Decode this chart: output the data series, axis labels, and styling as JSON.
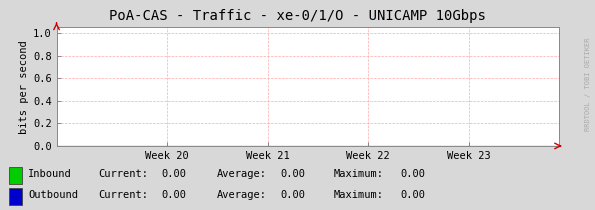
{
  "title": "PoA-CAS - Traffic - xe-0/1/O - UNICAMP 10Gbps",
  "ylabel": "bits per second",
  "background_color": "#d8d8d8",
  "plot_background_color": "#ffffff",
  "grid_color": "#ffaaaa",
  "axis_line_color": "#cc0000",
  "border_color": "#888888",
  "ylim": [
    0.0,
    1.05
  ],
  "yticks": [
    0.0,
    0.2,
    0.4,
    0.6,
    0.8,
    1.0
  ],
  "xtick_labels": [
    "Week 20",
    "Week 21",
    "Week 22",
    "Week 23"
  ],
  "xtick_positions": [
    0.22,
    0.42,
    0.62,
    0.82
  ],
  "watermark": "RRDTOOL / TOBI OETIKER",
  "legend": [
    {
      "label": "Inbound",
      "color": "#00cc00",
      "current": "0.00",
      "average": "0.00",
      "maximum": "0.00"
    },
    {
      "label": "Outbound",
      "color": "#0000cc",
      "current": "0.00",
      "average": "0.00",
      "maximum": "0.00"
    }
  ],
  "title_fontsize": 10,
  "tick_fontsize": 7.5,
  "legend_fontsize": 7.5,
  "ylabel_fontsize": 7.5,
  "watermark_fontsize": 5
}
